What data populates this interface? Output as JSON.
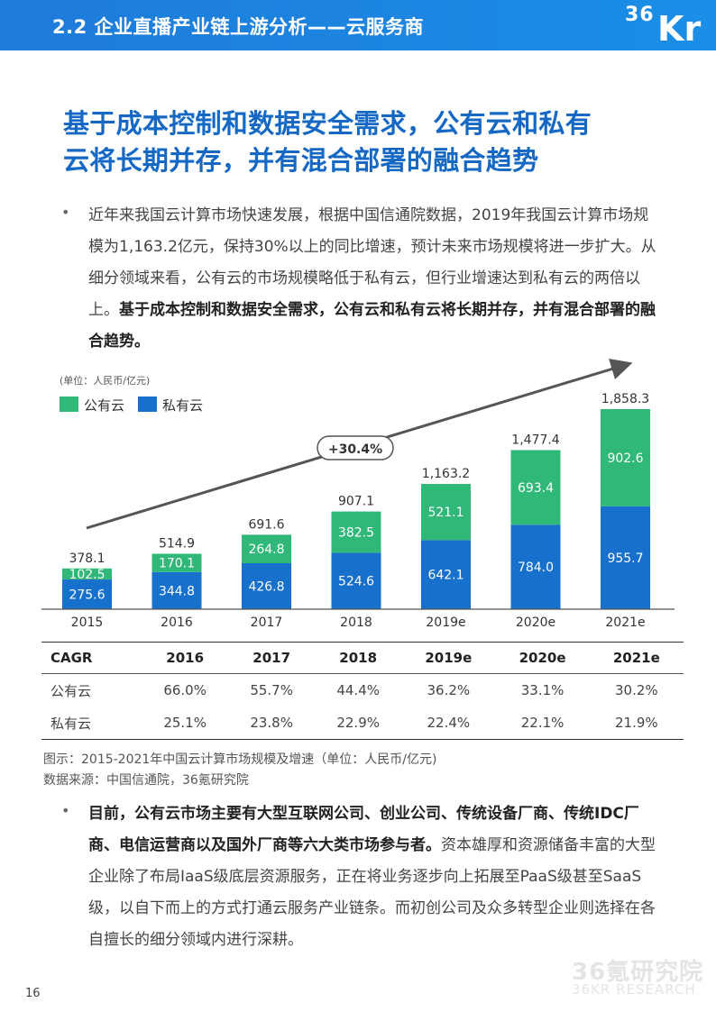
{
  "header": {
    "title": "2.2 企业直播产业链上游分析——云服务商",
    "logo": "36Kr",
    "logo_top": "36",
    "logo_bottom": "Kr"
  },
  "headline": {
    "line1": "基于成本控制和数据安全需求，公有云和私有",
    "line2": "云将长期并存，并有混合部署的融合趋势"
  },
  "paragraph1": {
    "normal": "近年来我国云计算市场快速发展，根据中国信通院数据，2019年我国云计算市场规模为1,163.2亿元，保持30%以上的同比增速，预计未来市场规模将进一步扩大。从细分领域来看，公有云的市场规模略低于私有云，但行业增速达到私有云的两倍以上。",
    "bold": "基于成本控制和数据安全需求，公有云和私有云将长期并存，并有混合部署的融合趋势。"
  },
  "chart_data": {
    "type": "bar",
    "stacked": true,
    "unit_label": "(单位：人民币/亿元)",
    "categories": [
      "2015",
      "2016",
      "2017",
      "2018",
      "2019e",
      "2020e",
      "2021e"
    ],
    "series": [
      {
        "name": "私有云",
        "color": "#1670cc",
        "values": [
          275.6,
          344.8,
          426.8,
          524.6,
          642.1,
          784.0,
          955.7
        ],
        "labels": [
          "275.6",
          "344.8",
          "426.8",
          "524.6",
          "642.1",
          "784.0",
          "955.7"
        ]
      },
      {
        "name": "公有云",
        "color": "#2fb878",
        "values": [
          102.5,
          170.1,
          264.8,
          382.5,
          521.1,
          693.4,
          902.6
        ],
        "labels": [
          "102.5",
          "170.1",
          "264.8",
          "382.5",
          "521.1",
          "693.4",
          "902.6"
        ]
      }
    ],
    "totals": [
      378.1,
      514.9,
      691.6,
      907.1,
      1163.2,
      1477.4,
      1858.3
    ],
    "total_labels": [
      "378.1",
      "514.9",
      "691.6",
      "907.1",
      "1,163.2",
      "1,477.4",
      "1,858.3"
    ],
    "legend": [
      {
        "name": "公有云",
        "color": "#2fb878"
      },
      {
        "name": "私有云",
        "color": "#1670cc"
      }
    ],
    "legend_position": "top-left",
    "annotation": "+30.4%",
    "trend_arrow": true,
    "ylim": [
      0,
      2000
    ],
    "grid": false
  },
  "cagr_table": {
    "headers": [
      "CAGR",
      "2016",
      "2017",
      "2018",
      "2019e",
      "2020e",
      "2021e"
    ],
    "rows": [
      [
        "公有云",
        "66.0%",
        "55.7%",
        "44.4%",
        "36.2%",
        "33.1%",
        "30.2%"
      ],
      [
        "私有云",
        "25.1%",
        "23.8%",
        "22.9%",
        "22.4%",
        "22.1%",
        "21.9%"
      ]
    ]
  },
  "caption": {
    "figure": "图示：2015-2021年中国云计算市场规模及增速（单位：人民币/亿元)",
    "source": "数据来源：中国信通院，36氪研究院"
  },
  "paragraph2": {
    "bold": "目前，公有云市场主要有大型互联网公司、创业公司、传统设备厂商、传统IDC厂商、电信运营商以及国外厂商等六大类市场参与者。",
    "normal": "资本雄厚和资源储备丰富的大型企业除了布局IaaS级底层资源服务，正在将业务逐步向上拓展至PaaS级甚至SaaS级，以自下而上的方式打通云服务产业链条。而初创公司及众多转型企业则选择在各自擅长的细分领域内进行深耕。"
  },
  "watermark": {
    "line1": "36氪研究院",
    "line2": "36KR RESEARCH"
  },
  "page_number": "16",
  "colors": {
    "header_blue": "#1f7ad9",
    "headline_blue": "#1668c5",
    "public_cloud_green": "#2fb878",
    "private_cloud_blue": "#1670cc"
  }
}
